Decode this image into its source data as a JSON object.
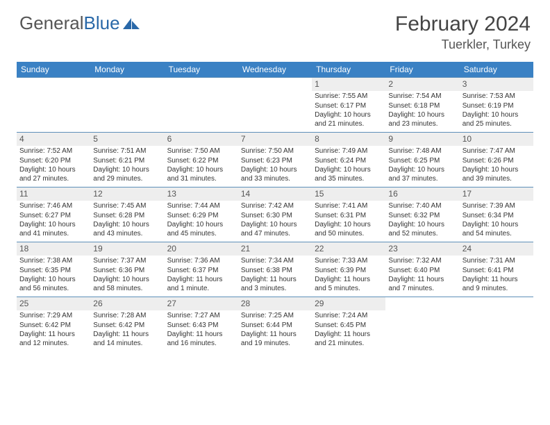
{
  "logo": {
    "text_general": "General",
    "text_blue": "Blue"
  },
  "header": {
    "month_title": "February 2024",
    "subtitle": "Tuerkler, Turkey"
  },
  "colors": {
    "header_bar": "#3a81c4",
    "daynum_bg": "#eeeeee",
    "week_border": "#5d8fb9",
    "logo_blue": "#2968a8",
    "title_color": "#444444"
  },
  "day_headers": [
    "Sunday",
    "Monday",
    "Tuesday",
    "Wednesday",
    "Thursday",
    "Friday",
    "Saturday"
  ],
  "weeks": [
    [
      {
        "day": "",
        "sunrise": "",
        "sunset": "",
        "daylight": ""
      },
      {
        "day": "",
        "sunrise": "",
        "sunset": "",
        "daylight": ""
      },
      {
        "day": "",
        "sunrise": "",
        "sunset": "",
        "daylight": ""
      },
      {
        "day": "",
        "sunrise": "",
        "sunset": "",
        "daylight": ""
      },
      {
        "day": "1",
        "sunrise": "Sunrise: 7:55 AM",
        "sunset": "Sunset: 6:17 PM",
        "daylight": "Daylight: 10 hours and 21 minutes."
      },
      {
        "day": "2",
        "sunrise": "Sunrise: 7:54 AM",
        "sunset": "Sunset: 6:18 PM",
        "daylight": "Daylight: 10 hours and 23 minutes."
      },
      {
        "day": "3",
        "sunrise": "Sunrise: 7:53 AM",
        "sunset": "Sunset: 6:19 PM",
        "daylight": "Daylight: 10 hours and 25 minutes."
      }
    ],
    [
      {
        "day": "4",
        "sunrise": "Sunrise: 7:52 AM",
        "sunset": "Sunset: 6:20 PM",
        "daylight": "Daylight: 10 hours and 27 minutes."
      },
      {
        "day": "5",
        "sunrise": "Sunrise: 7:51 AM",
        "sunset": "Sunset: 6:21 PM",
        "daylight": "Daylight: 10 hours and 29 minutes."
      },
      {
        "day": "6",
        "sunrise": "Sunrise: 7:50 AM",
        "sunset": "Sunset: 6:22 PM",
        "daylight": "Daylight: 10 hours and 31 minutes."
      },
      {
        "day": "7",
        "sunrise": "Sunrise: 7:50 AM",
        "sunset": "Sunset: 6:23 PM",
        "daylight": "Daylight: 10 hours and 33 minutes."
      },
      {
        "day": "8",
        "sunrise": "Sunrise: 7:49 AM",
        "sunset": "Sunset: 6:24 PM",
        "daylight": "Daylight: 10 hours and 35 minutes."
      },
      {
        "day": "9",
        "sunrise": "Sunrise: 7:48 AM",
        "sunset": "Sunset: 6:25 PM",
        "daylight": "Daylight: 10 hours and 37 minutes."
      },
      {
        "day": "10",
        "sunrise": "Sunrise: 7:47 AM",
        "sunset": "Sunset: 6:26 PM",
        "daylight": "Daylight: 10 hours and 39 minutes."
      }
    ],
    [
      {
        "day": "11",
        "sunrise": "Sunrise: 7:46 AM",
        "sunset": "Sunset: 6:27 PM",
        "daylight": "Daylight: 10 hours and 41 minutes."
      },
      {
        "day": "12",
        "sunrise": "Sunrise: 7:45 AM",
        "sunset": "Sunset: 6:28 PM",
        "daylight": "Daylight: 10 hours and 43 minutes."
      },
      {
        "day": "13",
        "sunrise": "Sunrise: 7:44 AM",
        "sunset": "Sunset: 6:29 PM",
        "daylight": "Daylight: 10 hours and 45 minutes."
      },
      {
        "day": "14",
        "sunrise": "Sunrise: 7:42 AM",
        "sunset": "Sunset: 6:30 PM",
        "daylight": "Daylight: 10 hours and 47 minutes."
      },
      {
        "day": "15",
        "sunrise": "Sunrise: 7:41 AM",
        "sunset": "Sunset: 6:31 PM",
        "daylight": "Daylight: 10 hours and 50 minutes."
      },
      {
        "day": "16",
        "sunrise": "Sunrise: 7:40 AM",
        "sunset": "Sunset: 6:32 PM",
        "daylight": "Daylight: 10 hours and 52 minutes."
      },
      {
        "day": "17",
        "sunrise": "Sunrise: 7:39 AM",
        "sunset": "Sunset: 6:34 PM",
        "daylight": "Daylight: 10 hours and 54 minutes."
      }
    ],
    [
      {
        "day": "18",
        "sunrise": "Sunrise: 7:38 AM",
        "sunset": "Sunset: 6:35 PM",
        "daylight": "Daylight: 10 hours and 56 minutes."
      },
      {
        "day": "19",
        "sunrise": "Sunrise: 7:37 AM",
        "sunset": "Sunset: 6:36 PM",
        "daylight": "Daylight: 10 hours and 58 minutes."
      },
      {
        "day": "20",
        "sunrise": "Sunrise: 7:36 AM",
        "sunset": "Sunset: 6:37 PM",
        "daylight": "Daylight: 11 hours and 1 minute."
      },
      {
        "day": "21",
        "sunrise": "Sunrise: 7:34 AM",
        "sunset": "Sunset: 6:38 PM",
        "daylight": "Daylight: 11 hours and 3 minutes."
      },
      {
        "day": "22",
        "sunrise": "Sunrise: 7:33 AM",
        "sunset": "Sunset: 6:39 PM",
        "daylight": "Daylight: 11 hours and 5 minutes."
      },
      {
        "day": "23",
        "sunrise": "Sunrise: 7:32 AM",
        "sunset": "Sunset: 6:40 PM",
        "daylight": "Daylight: 11 hours and 7 minutes."
      },
      {
        "day": "24",
        "sunrise": "Sunrise: 7:31 AM",
        "sunset": "Sunset: 6:41 PM",
        "daylight": "Daylight: 11 hours and 9 minutes."
      }
    ],
    [
      {
        "day": "25",
        "sunrise": "Sunrise: 7:29 AM",
        "sunset": "Sunset: 6:42 PM",
        "daylight": "Daylight: 11 hours and 12 minutes."
      },
      {
        "day": "26",
        "sunrise": "Sunrise: 7:28 AM",
        "sunset": "Sunset: 6:42 PM",
        "daylight": "Daylight: 11 hours and 14 minutes."
      },
      {
        "day": "27",
        "sunrise": "Sunrise: 7:27 AM",
        "sunset": "Sunset: 6:43 PM",
        "daylight": "Daylight: 11 hours and 16 minutes."
      },
      {
        "day": "28",
        "sunrise": "Sunrise: 7:25 AM",
        "sunset": "Sunset: 6:44 PM",
        "daylight": "Daylight: 11 hours and 19 minutes."
      },
      {
        "day": "29",
        "sunrise": "Sunrise: 7:24 AM",
        "sunset": "Sunset: 6:45 PM",
        "daylight": "Daylight: 11 hours and 21 minutes."
      },
      {
        "day": "",
        "sunrise": "",
        "sunset": "",
        "daylight": ""
      },
      {
        "day": "",
        "sunrise": "",
        "sunset": "",
        "daylight": ""
      }
    ]
  ]
}
